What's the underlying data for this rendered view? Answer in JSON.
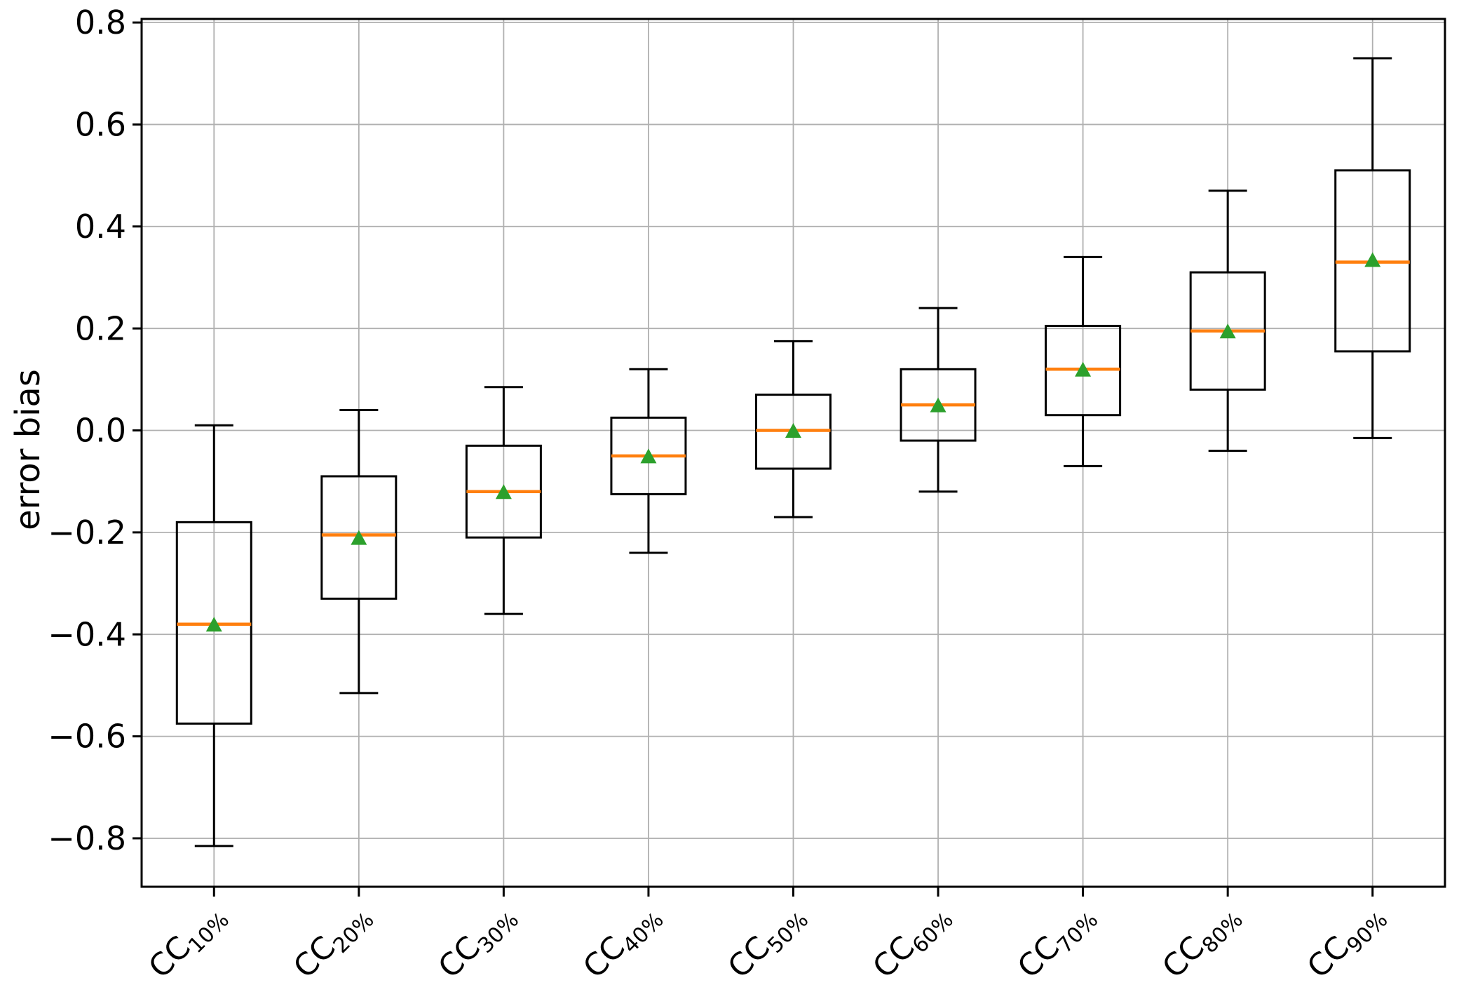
{
  "figure": {
    "title": ""
  },
  "chart_data": {
    "type": "box",
    "title": "",
    "xlabel": "",
    "ylabel": "error bias",
    "ylim": [
      -0.895,
      0.807
    ],
    "grid": true,
    "legend_position": "none",
    "yticks": [
      {
        "value": 0.8,
        "label": "0.8"
      },
      {
        "value": 0.6,
        "label": "0.6"
      },
      {
        "value": 0.4,
        "label": "0.4"
      },
      {
        "value": 0.2,
        "label": "0.2"
      },
      {
        "value": 0.0,
        "label": "0.0"
      },
      {
        "value": -0.2,
        "label": "−0.2"
      },
      {
        "value": -0.4,
        "label": "−0.4"
      },
      {
        "value": -0.6,
        "label": "−0.6"
      },
      {
        "value": -0.8,
        "label": "−0.8"
      }
    ],
    "categories": [
      {
        "base": "CC",
        "sub": "10%"
      },
      {
        "base": "CC",
        "sub": "20%"
      },
      {
        "base": "CC",
        "sub": "30%"
      },
      {
        "base": "CC",
        "sub": "40%"
      },
      {
        "base": "CC",
        "sub": "50%"
      },
      {
        "base": "CC",
        "sub": "60%"
      },
      {
        "base": "CC",
        "sub": "70%"
      },
      {
        "base": "CC",
        "sub": "80%"
      },
      {
        "base": "CC",
        "sub": "90%"
      }
    ],
    "boxes": [
      {
        "label": "CC10%",
        "whislo": -0.815,
        "q1": -0.575,
        "med": -0.38,
        "mean": -0.38,
        "q3": -0.18,
        "whishi": 0.01
      },
      {
        "label": "CC20%",
        "whislo": -0.515,
        "q1": -0.33,
        "med": -0.205,
        "mean": -0.21,
        "q3": -0.09,
        "whishi": 0.04
      },
      {
        "label": "CC30%",
        "whislo": -0.36,
        "q1": -0.21,
        "med": -0.12,
        "mean": -0.12,
        "q3": -0.03,
        "whishi": 0.085
      },
      {
        "label": "CC40%",
        "whislo": -0.24,
        "q1": -0.125,
        "med": -0.05,
        "mean": -0.05,
        "q3": 0.025,
        "whishi": 0.12
      },
      {
        "label": "CC50%",
        "whislo": -0.17,
        "q1": -0.075,
        "med": 0.0,
        "mean": 0.0,
        "q3": 0.07,
        "whishi": 0.175
      },
      {
        "label": "CC60%",
        "whislo": -0.12,
        "q1": -0.02,
        "med": 0.05,
        "mean": 0.05,
        "q3": 0.12,
        "whishi": 0.24
      },
      {
        "label": "CC70%",
        "whislo": -0.07,
        "q1": 0.03,
        "med": 0.12,
        "mean": 0.12,
        "q3": 0.205,
        "whishi": 0.34
      },
      {
        "label": "CC80%",
        "whislo": -0.04,
        "q1": 0.08,
        "med": 0.195,
        "mean": 0.195,
        "q3": 0.31,
        "whishi": 0.47
      },
      {
        "label": "CC90%",
        "whislo": -0.015,
        "q1": 0.155,
        "med": 0.33,
        "mean": 0.335,
        "q3": 0.51,
        "whishi": 0.73
      }
    ],
    "colors": {
      "median": "#ff7f0e",
      "mean": "#2ca02c",
      "line": "#000000",
      "grid": "#b0b0b0",
      "background": "#ffffff"
    }
  }
}
